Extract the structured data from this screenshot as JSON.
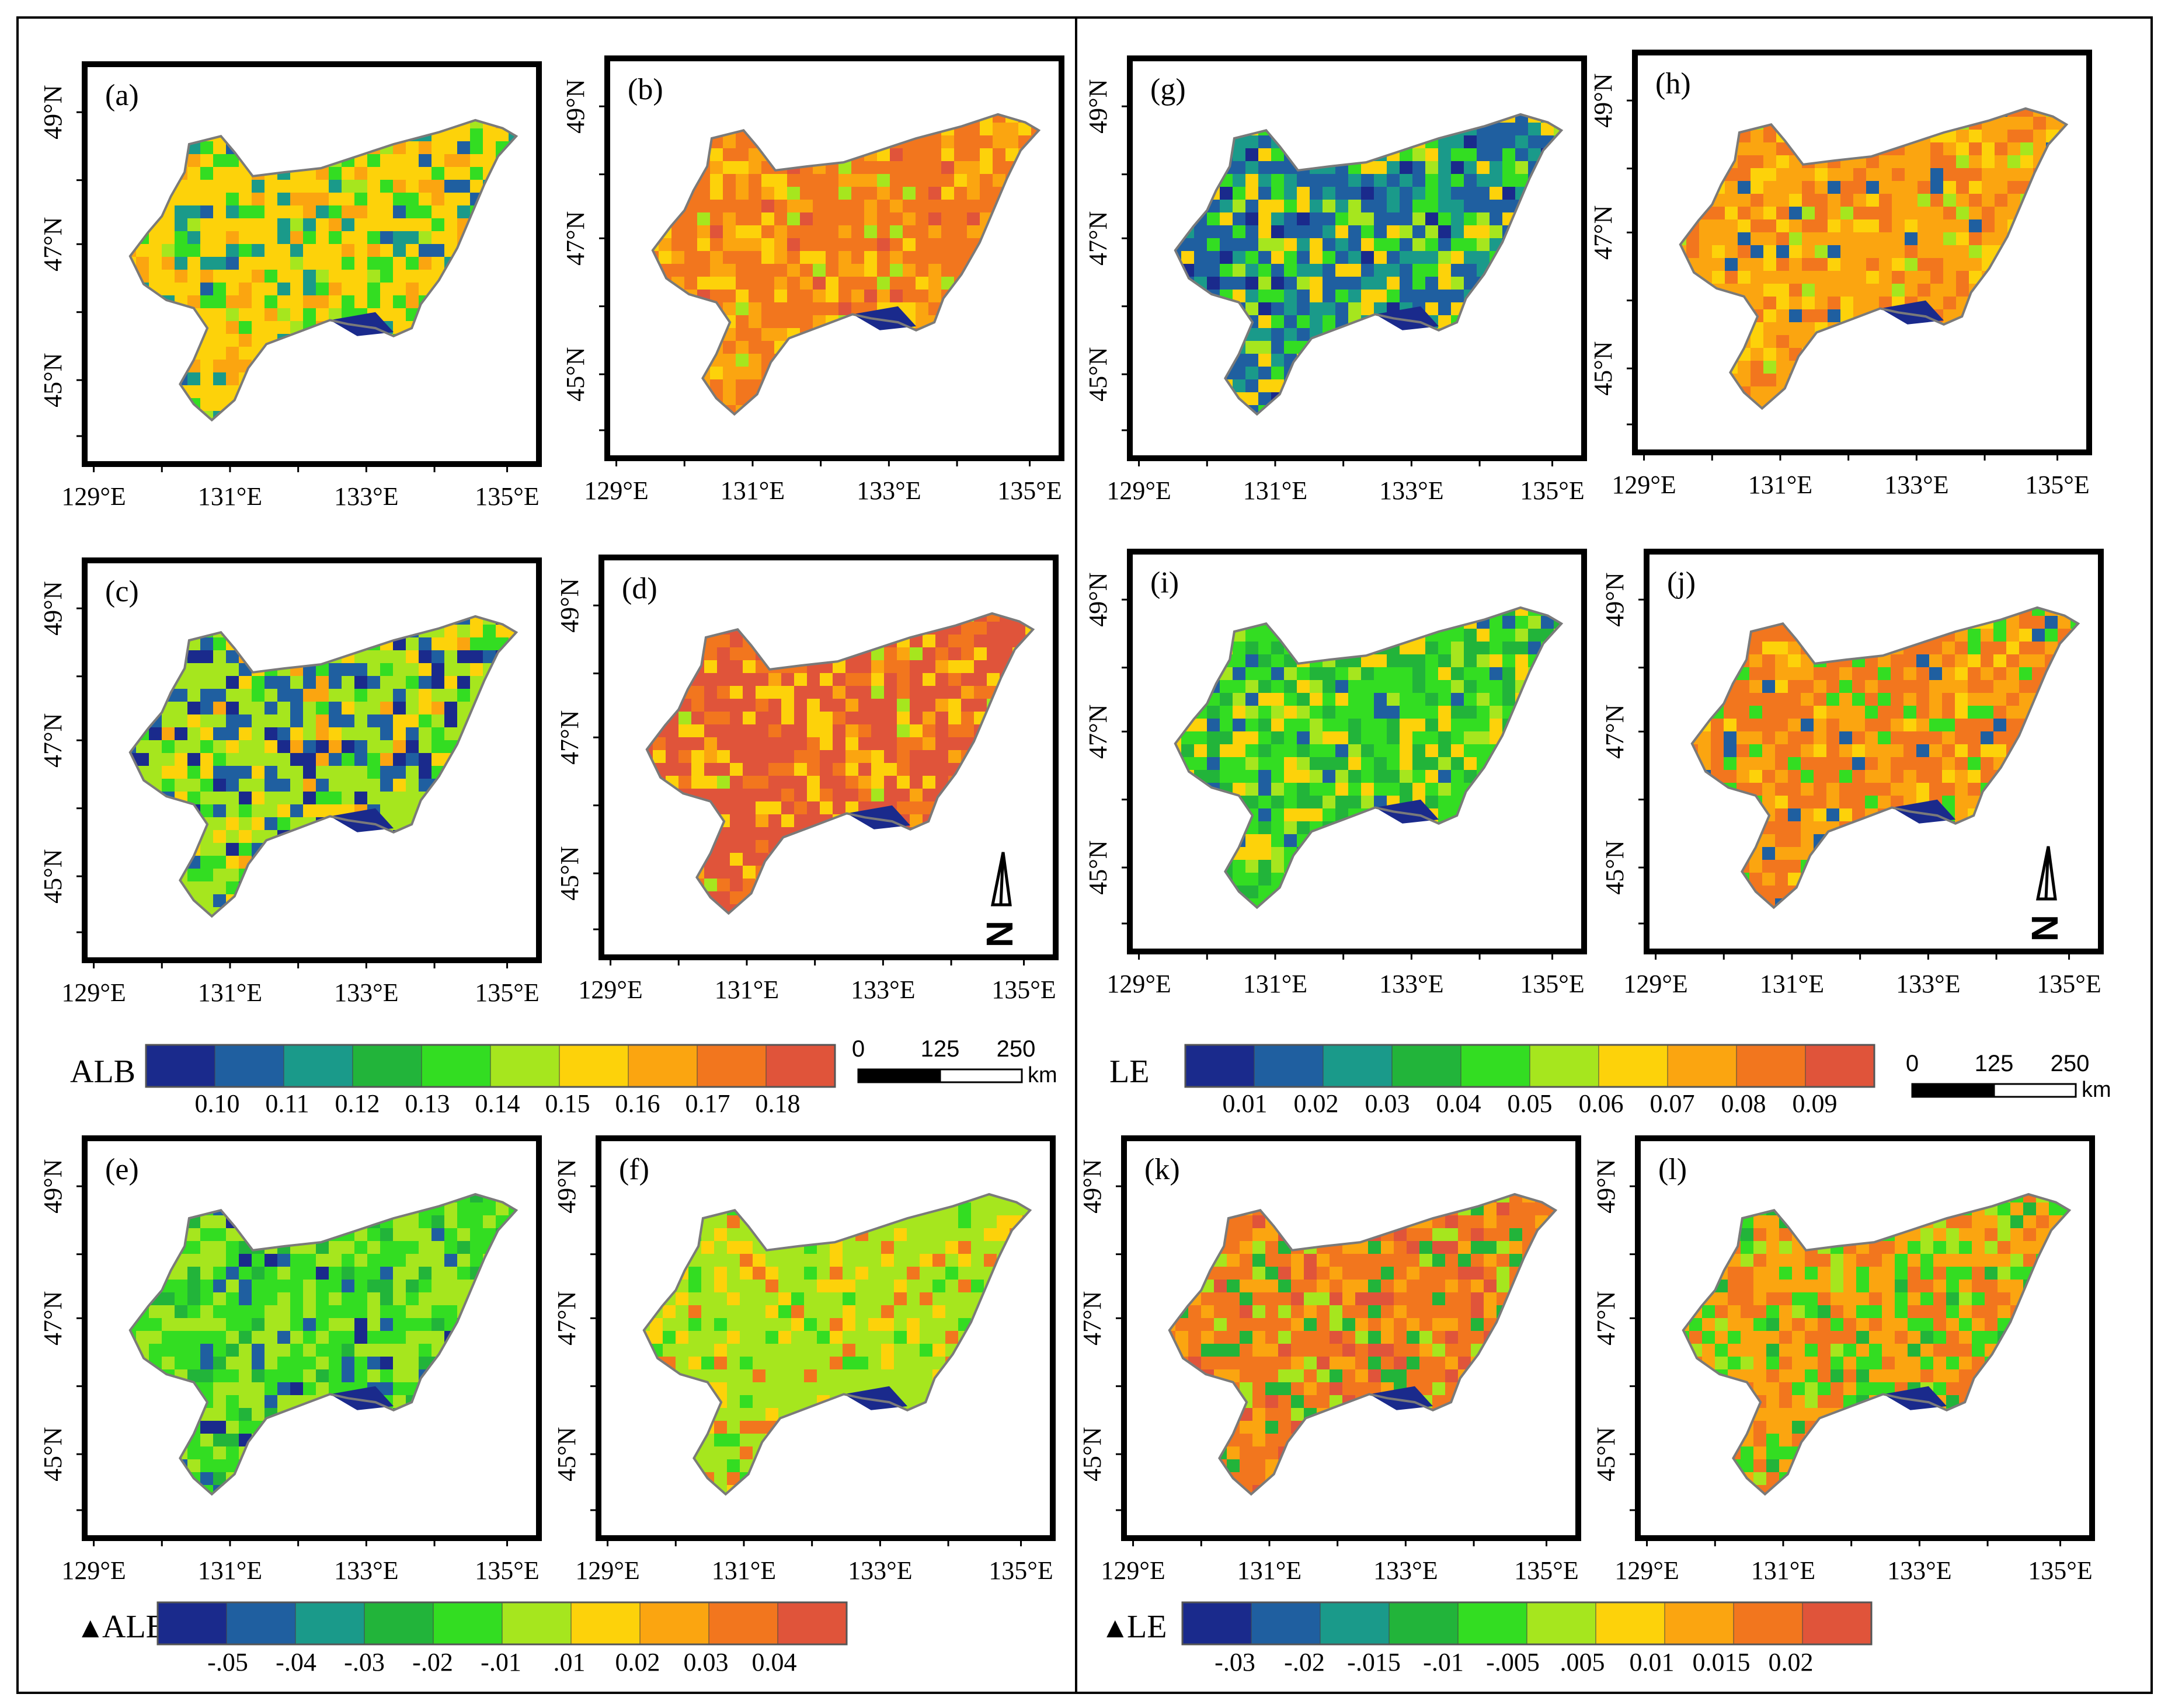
{
  "panels": [
    {
      "id": "a",
      "label": "(a)",
      "variable": "ALB",
      "palette": "alb_a"
    },
    {
      "id": "b",
      "label": "(b)",
      "variable": "ALB",
      "palette": "alb_b"
    },
    {
      "id": "c",
      "label": "(c)",
      "variable": "ALB",
      "palette": "alb_c"
    },
    {
      "id": "d",
      "label": "(d)",
      "variable": "ALB",
      "palette": "alb_d"
    },
    {
      "id": "e",
      "label": "(e)",
      "variable": "dALB",
      "palette": "dalb_e"
    },
    {
      "id": "f",
      "label": "(f)",
      "variable": "dALB",
      "palette": "dalb_f"
    },
    {
      "id": "g",
      "label": "(g)",
      "variable": "LE",
      "palette": "le_g"
    },
    {
      "id": "h",
      "label": "(h)",
      "variable": "LE",
      "palette": "le_h"
    },
    {
      "id": "i",
      "label": "(i)",
      "variable": "LE",
      "palette": "le_i"
    },
    {
      "id": "j",
      "label": "(j)",
      "variable": "LE",
      "palette": "le_j"
    },
    {
      "id": "k",
      "label": "(k)",
      "variable": "dLE",
      "palette": "dle_k"
    },
    {
      "id": "l",
      "label": "(l)",
      "variable": "dLE",
      "palette": "dle_l"
    }
  ],
  "axes": {
    "lat_labels": [
      "49°N",
      "47°N",
      "45°N"
    ],
    "lon_labels": [
      "129°E",
      "131°E",
      "133°E",
      "135°E"
    ]
  },
  "legends": {
    "alb": {
      "title": "ALB",
      "ticks": [
        "0.10",
        "0.11",
        "0.12",
        "0.13",
        "0.14",
        "0.15",
        "0.16",
        "0.17",
        "0.18"
      ]
    },
    "le": {
      "title": "LE",
      "ticks": [
        "0.01",
        "0.02",
        "0.03",
        "0.04",
        "0.05",
        "0.06",
        "0.07",
        "0.08",
        "0.09"
      ]
    },
    "dalb": {
      "title": "ALB",
      "symbol": "▲",
      "ticks": [
        "-.05",
        "-.04",
        "-.03",
        "-.02",
        "-.01",
        ".01",
        "0.02",
        "0.03",
        "0.04"
      ]
    },
    "dle": {
      "title": "LE",
      "symbol": "▲",
      "ticks": [
        "-.03",
        "-.02",
        "-.015",
        "-.01",
        "-.005",
        ".005",
        "0.01",
        "0.015",
        "0.02"
      ]
    }
  },
  "scale_bar": {
    "ticks": [
      "0",
      "125",
      "250"
    ],
    "unit": "km"
  },
  "north_arrow": {
    "letter": "N"
  },
  "colors": {
    "ramp": [
      "#1a2a8c",
      "#1f5fa0",
      "#1a9a8a",
      "#22b43a",
      "#33dd22",
      "#a6e61e",
      "#fdd20a",
      "#fba510",
      "#f2761e",
      "#e0543a"
    ],
    "frame": "#000000",
    "boundary": "#7a7a7a"
  },
  "palettes": {
    "alb_a": [
      [
        5,
        0.05
      ],
      [
        6,
        0.55
      ],
      [
        4,
        0.15
      ],
      [
        2,
        0.12
      ],
      [
        1,
        0.03
      ],
      [
        7,
        0.1
      ]
    ],
    "alb_b": [
      [
        8,
        0.55
      ],
      [
        7,
        0.25
      ],
      [
        6,
        0.12
      ],
      [
        5,
        0.05
      ],
      [
        9,
        0.03
      ]
    ],
    "alb_c": [
      [
        5,
        0.4
      ],
      [
        6,
        0.15
      ],
      [
        1,
        0.18
      ],
      [
        0,
        0.12
      ],
      [
        4,
        0.1
      ],
      [
        7,
        0.05
      ]
    ],
    "alb_d": [
      [
        9,
        0.55
      ],
      [
        8,
        0.2
      ],
      [
        6,
        0.15
      ],
      [
        5,
        0.05
      ],
      [
        7,
        0.05
      ]
    ],
    "dalb_e": [
      [
        4,
        0.45
      ],
      [
        5,
        0.35
      ],
      [
        3,
        0.1
      ],
      [
        1,
        0.07
      ],
      [
        0,
        0.03
      ]
    ],
    "dalb_f": [
      [
        5,
        0.65
      ],
      [
        6,
        0.15
      ],
      [
        4,
        0.1
      ],
      [
        8,
        0.1
      ]
    ],
    "le_g": [
      [
        1,
        0.35
      ],
      [
        2,
        0.2
      ],
      [
        4,
        0.15
      ],
      [
        6,
        0.15
      ],
      [
        5,
        0.1
      ],
      [
        0,
        0.05
      ]
    ],
    "le_h": [
      [
        7,
        0.5
      ],
      [
        8,
        0.25
      ],
      [
        6,
        0.15
      ],
      [
        5,
        0.05
      ],
      [
        1,
        0.05
      ]
    ],
    "le_i": [
      [
        4,
        0.4
      ],
      [
        3,
        0.25
      ],
      [
        6,
        0.15
      ],
      [
        5,
        0.12
      ],
      [
        1,
        0.08
      ]
    ],
    "le_j": [
      [
        8,
        0.45
      ],
      [
        7,
        0.3
      ],
      [
        6,
        0.12
      ],
      [
        4,
        0.08
      ],
      [
        1,
        0.05
      ]
    ],
    "dle_k": [
      [
        8,
        0.45
      ],
      [
        7,
        0.25
      ],
      [
        9,
        0.1
      ],
      [
        3,
        0.12
      ],
      [
        5,
        0.08
      ]
    ],
    "dle_l": [
      [
        7,
        0.35
      ],
      [
        8,
        0.25
      ],
      [
        4,
        0.2
      ],
      [
        5,
        0.12
      ],
      [
        3,
        0.08
      ]
    ]
  }
}
